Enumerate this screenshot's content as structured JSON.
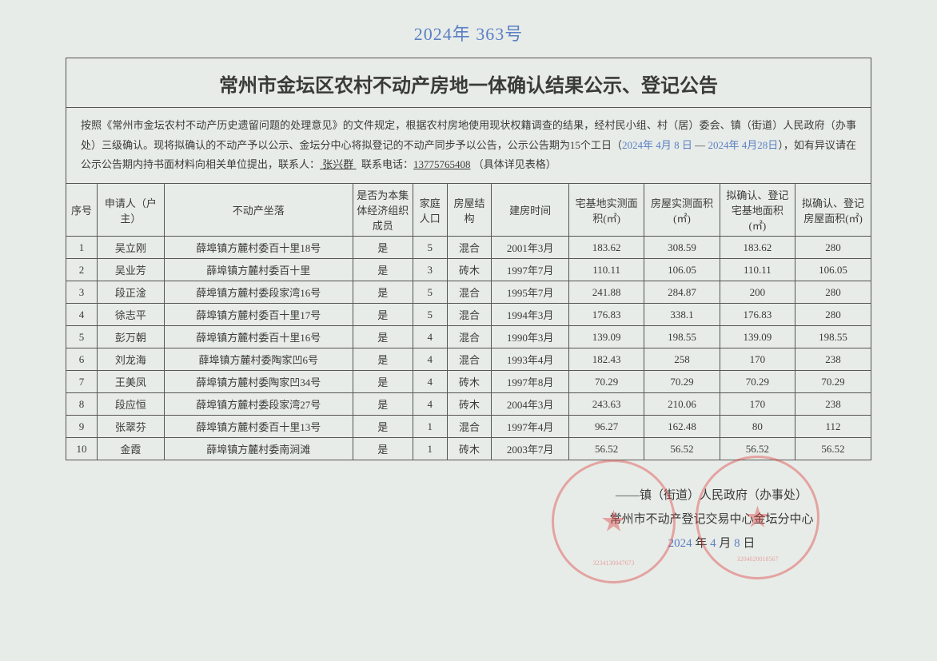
{
  "handwrittenTop": "2024年 363号",
  "title": "常州市金坛区农村不动产房地一体确认结果公示、登记公告",
  "intro": {
    "prefix": "按照《常州市金坛农村不动产历史遗留问题的处理意见》的文件规定，根据农村房地使用现状权籍调查的结果，经村民小组、村（居）委会、镇（街道）人民政府（办事处）三级确认。现将拟确认的不动产予以公示、金坛分中心将拟登记的不动产同步予以公告，公示公告期为15个工日（",
    "dateStart": "2024年 4月 8 日",
    "mid": "    — ",
    "dateEnd": "2024年 4月28日",
    "suffix": "），如有异议请在公示公告期内持书面材料向相关单位提出，联系人：",
    "contactName": "  张兴群  ",
    "contactMid": "联系电话：",
    "contactPhone": "13775765408",
    "tail": "（具体详见表格）"
  },
  "headers": {
    "seq": "序号",
    "applicant": "申请人（户主）",
    "address": "不动产坐落",
    "member": "是否为本集体经济组织成员",
    "population": "家庭人口",
    "structure": "房屋结构",
    "buildDate": "建房时间",
    "landMeasured": "宅基地实测面积(㎡)",
    "houseMeasured": "房屋实测面积(㎡)",
    "landConfirm": "拟确认、登记宅基地面积(㎡)",
    "houseConfirm": "拟确认、登记房屋面积(㎡)"
  },
  "rows": [
    {
      "seq": "1",
      "name": "吴立刚",
      "addr": "薛埠镇方麓村委百十里18号",
      "member": "是",
      "pop": "5",
      "struct": "混合",
      "date": "2001年3月",
      "a": "183.62",
      "b": "308.59",
      "c": "183.62",
      "d": "280"
    },
    {
      "seq": "2",
      "name": "吴业芳",
      "addr": "薛埠镇方麓村委百十里",
      "member": "是",
      "pop": "3",
      "struct": "砖木",
      "date": "1997年7月",
      "a": "110.11",
      "b": "106.05",
      "c": "110.11",
      "d": "106.05"
    },
    {
      "seq": "3",
      "name": "段正淦",
      "addr": "薛埠镇方麓村委段家湾16号",
      "member": "是",
      "pop": "5",
      "struct": "混合",
      "date": "1995年7月",
      "a": "241.88",
      "b": "284.87",
      "c": "200",
      "d": "280"
    },
    {
      "seq": "4",
      "name": "徐志平",
      "addr": "薛埠镇方麓村委百十里17号",
      "member": "是",
      "pop": "5",
      "struct": "混合",
      "date": "1994年3月",
      "a": "176.83",
      "b": "338.1",
      "c": "176.83",
      "d": "280"
    },
    {
      "seq": "5",
      "name": "彭万朝",
      "addr": "薛埠镇方麓村委百十里16号",
      "member": "是",
      "pop": "4",
      "struct": "混合",
      "date": "1990年3月",
      "a": "139.09",
      "b": "198.55",
      "c": "139.09",
      "d": "198.55"
    },
    {
      "seq": "6",
      "name": "刘龙海",
      "addr": "薛埠镇方麓村委陶家凹6号",
      "member": "是",
      "pop": "4",
      "struct": "混合",
      "date": "1993年4月",
      "a": "182.43",
      "b": "258",
      "c": "170",
      "d": "238"
    },
    {
      "seq": "7",
      "name": "王美凤",
      "addr": "薛埠镇方麓村委陶家凹34号",
      "member": "是",
      "pop": "4",
      "struct": "砖木",
      "date": "1997年8月",
      "a": "70.29",
      "b": "70.29",
      "c": "70.29",
      "d": "70.29"
    },
    {
      "seq": "8",
      "name": "段应恒",
      "addr": "薛埠镇方麓村委段家湾27号",
      "member": "是",
      "pop": "4",
      "struct": "砖木",
      "date": "2004年3月",
      "a": "243.63",
      "b": "210.06",
      "c": "170",
      "d": "238"
    },
    {
      "seq": "9",
      "name": "张翠芬",
      "addr": "薛埠镇方麓村委百十里13号",
      "member": "是",
      "pop": "1",
      "struct": "混合",
      "date": "1997年4月",
      "a": "96.27",
      "b": "162.48",
      "c": "80",
      "d": "112"
    },
    {
      "seq": "10",
      "name": "金霞",
      "addr": "薛埠镇方麓村委南涧滩",
      "member": "是",
      "pop": "1",
      "struct": "砖木",
      "date": "2003年7月",
      "a": "56.52",
      "b": "56.52",
      "c": "56.52",
      "d": "56.52"
    }
  ],
  "footer": {
    "line1a": "——",
    "line1b": "镇（街道）人民政府（办事处）",
    "line2": "常州市不动产登记交易中心金坛分中心",
    "dateYear": "2024",
    "dateYearLabel": " 年 ",
    "dateMonth": "4",
    "dateMonthLabel": " 月 ",
    "dateDay": "8",
    "dateDayLabel": " 日"
  },
  "stamp1_bottom": "3234130047673",
  "stamp2_bottom": "3204020018567"
}
